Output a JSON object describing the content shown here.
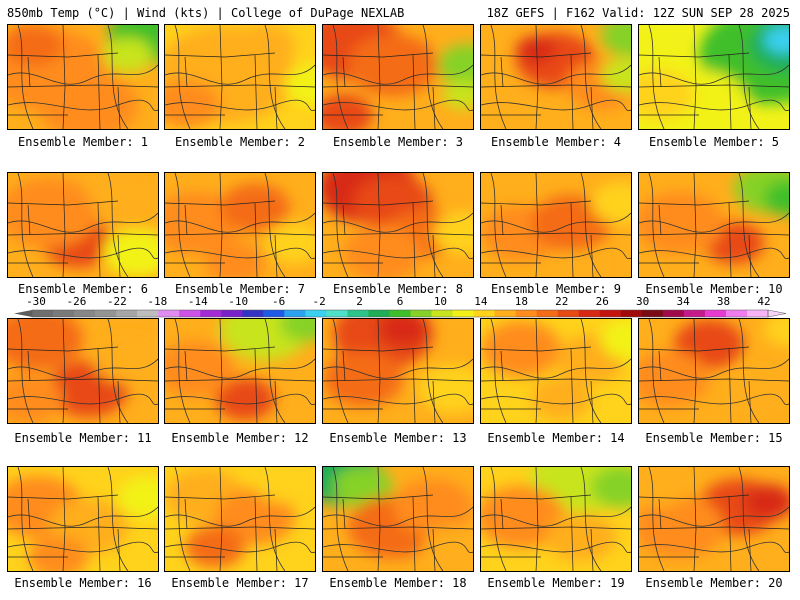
{
  "header": {
    "left": "850mb Temp (°C) | Wind (kts) | College of DuPage NEXLAB",
    "right": "18Z GEFS | F162 Valid: 12Z SUN SEP 28 2025"
  },
  "colorbar": {
    "labels": [
      "-30",
      "-26",
      "-22",
      "-18",
      "-14",
      "-10",
      "-6",
      "-2",
      "2",
      "6",
      "10",
      "14",
      "18",
      "22",
      "26",
      "30",
      "34",
      "38",
      "42"
    ],
    "colors": [
      "#6e6e6e",
      "#7a7a7a",
      "#878787",
      "#949494",
      "#a6a6a6",
      "#bdbdbd",
      "#e08cf2",
      "#cc52e8",
      "#a32bd6",
      "#7a22c9",
      "#3434c4",
      "#1e5ae6",
      "#2aa2f0",
      "#3ad0f2",
      "#4ee0c8",
      "#2cc48a",
      "#1fae55",
      "#3fbf2c",
      "#86d228",
      "#c8e41e",
      "#f2f219",
      "#ffd21c",
      "#ffae1c",
      "#ff8c1c",
      "#f46c16",
      "#e84a14",
      "#d82a12",
      "#c4140e",
      "#a00a0a",
      "#7a0a14",
      "#a00a4a",
      "#c41a8a",
      "#e63ad0",
      "#f07cf0",
      "#f6b4f6"
    ]
  },
  "members": [
    {
      "label": "Ensemble Member: 1"
    },
    {
      "label": "Ensemble Member: 2"
    },
    {
      "label": "Ensemble Member: 3"
    },
    {
      "label": "Ensemble Member: 4"
    },
    {
      "label": "Ensemble Member: 5"
    },
    {
      "label": "Ensemble Member: 6"
    },
    {
      "label": "Ensemble Member: 7"
    },
    {
      "label": "Ensemble Member: 8"
    },
    {
      "label": "Ensemble Member: 9"
    },
    {
      "label": "Ensemble Member: 10"
    },
    {
      "label": "Ensemble Member: 11"
    },
    {
      "label": "Ensemble Member: 12"
    },
    {
      "label": "Ensemble Member: 13"
    },
    {
      "label": "Ensemble Member: 14"
    },
    {
      "label": "Ensemble Member: 15"
    },
    {
      "label": "Ensemble Member: 16"
    },
    {
      "label": "Ensemble Member: 17"
    },
    {
      "label": "Ensemble Member: 18"
    },
    {
      "label": "Ensemble Member: 19"
    },
    {
      "label": "Ensemble Member: 20"
    }
  ]
}
